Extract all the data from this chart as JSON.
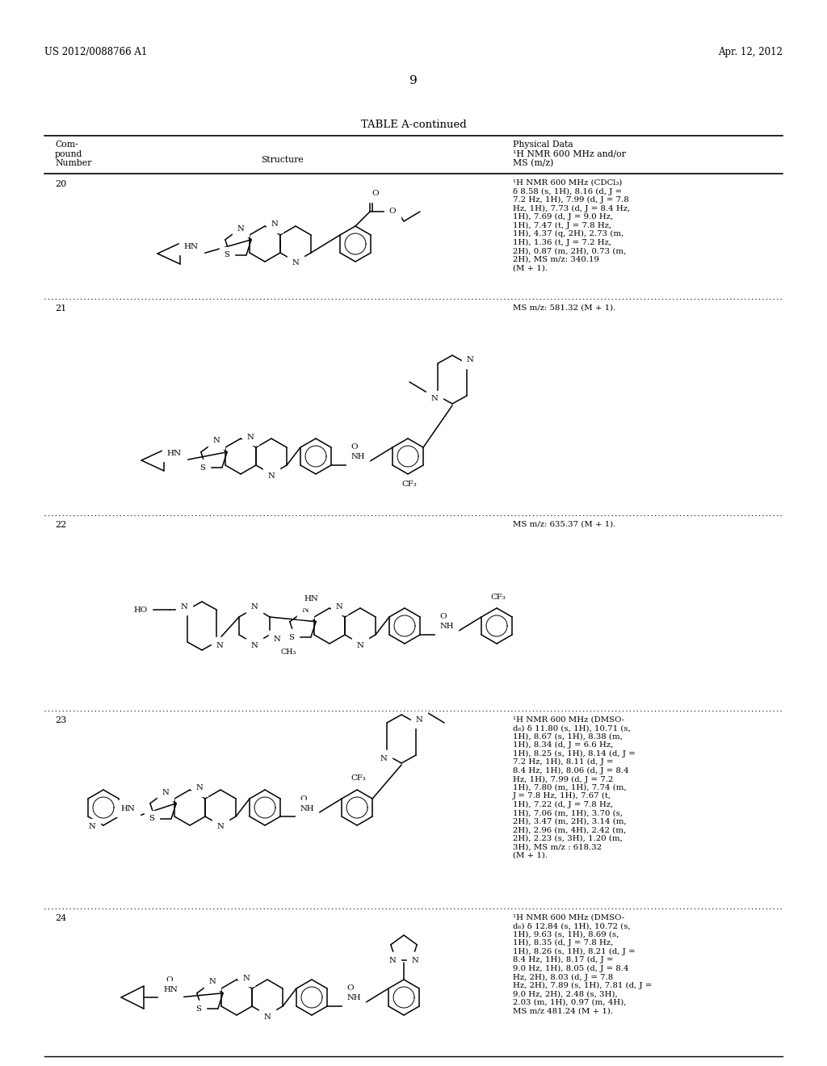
{
  "header_left": "US 2012/0088766 A1",
  "header_right": "Apr. 12, 2012",
  "page_number": "9",
  "table_title": "TABLE A-continued",
  "compounds": [
    {
      "number": "20",
      "nmr_data": "¹H NMR 600 MHz (CDCl₃)\nδ 8.58 (s, 1H), 8.16 (d, J =\n7.2 Hz, 1H), 7.99 (d, J = 7.8\nHz, 1H), 7.73 (d, J = 8.4 Hz,\n1H), 7.69 (d, J = 9.0 Hz,\n1H), 7.47 (t, J = 7.8 Hz,\n1H), 4.37 (q, 2H), 2.73 (m,\n1H), 1.36 (t, J = 7.2 Hz,\n2H), 0.87 (m, 2H), 0.73 (m,\n2H), MS m/z: 340.19\n(M + 1)."
    },
    {
      "number": "21",
      "nmr_data": "MS m/z: 581.32 (M + 1)."
    },
    {
      "number": "22",
      "nmr_data": "MS m/z: 635.37 (M + 1)."
    },
    {
      "number": "23",
      "nmr_data": "¹H NMR 600 MHz (DMSO-\nd₆) δ 11.80 (s, 1H), 10.71 (s,\n1H), 8.67 (s, 1H), 8.38 (m,\n1H), 8.34 (d, J = 6.6 Hz,\n1H), 8.25 (s, 1H), 8.14 (d, J =\n7.2 Hz, 1H), 8.11 (d, J =\n8.4 Hz, 1H), 8.06 (d, J = 8.4\nHz, 1H), 7.99 (d, J = 7.2\n1H), 7.80 (m, 1H), 7.74 (m,\nJ = 7.8 Hz, 1H), 7.67 (t,\n1H), 7.22 (d, J = 7.8 Hz,\n1H), 7.06 (m, 1H), 3.70 (s,\n2H), 3.47 (m, 2H), 3.14 (m,\n2H), 2.96 (m, 4H), 2.42 (m,\n2H), 2.23 (s, 3H), 1.20 (m,\n3H), MS m/z : 618.32\n(M + 1)."
    },
    {
      "number": "24",
      "nmr_data": "¹H NMR 600 MHz (DMSO-\nd₆) δ 12.84 (s, 1H), 10.72 (s,\n1H), 9.63 (s, 1H), 8.69 (s,\n1H), 8.35 (d, J = 7.8 Hz,\n1H), 8.26 (s, 1H), 8.21 (d, J =\n8.4 Hz, 1H), 8.17 (d, J =\n9.0 Hz, 1H), 8.05 (d, J = 8.4\nHz, 2H), 8.03 (d, J = 7.8\nHz, 2H), 7.89 (s, 1H), 7.81 (d, J =\n9.0 Hz, 2H), 2.48 (s, 3H),\n2.03 (m, 1H), 0.97 (m, 4H),\nMS m/z 481.24 (M + 1)."
    }
  ]
}
